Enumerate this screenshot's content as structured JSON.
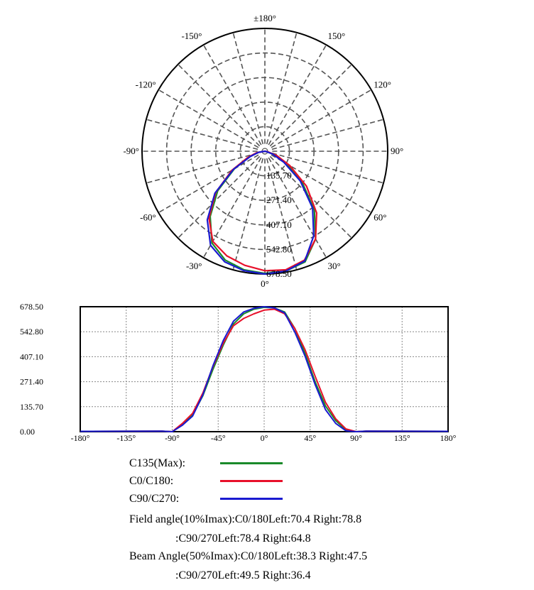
{
  "chart_data": [
    {
      "type": "polar",
      "angle_labels": [
        {
          "deg": 180,
          "text": "±180°"
        },
        {
          "deg": 150,
          "text": "150°"
        },
        {
          "deg": 120,
          "text": "120°"
        },
        {
          "deg": 90,
          "text": "90°"
        },
        {
          "deg": 60,
          "text": "60°"
        },
        {
          "deg": 30,
          "text": "30°"
        },
        {
          "deg": 0,
          "text": "0°"
        },
        {
          "deg": -30,
          "text": "-30°"
        },
        {
          "deg": -60,
          "text": "-60°"
        },
        {
          "deg": -90,
          "text": "-90°"
        },
        {
          "deg": -120,
          "text": "-120°"
        },
        {
          "deg": -150,
          "text": "-150°"
        }
      ],
      "radial_ticks": [
        135.7,
        271.4,
        407.1,
        542.8,
        678.5
      ],
      "radial_tick_labels": [
        "135.70",
        "271.40",
        "407.10",
        "542.80",
        "678.50"
      ],
      "rmax": 678.5
    },
    {
      "type": "line",
      "x_ticks": [
        -180,
        -135,
        -90,
        -45,
        0,
        45,
        90,
        135,
        180
      ],
      "x_tick_labels": [
        "-180°",
        "-135°",
        "-90°",
        "-45°",
        "0°",
        "45°",
        "90°",
        "135°",
        "180°"
      ],
      "y_ticks": [
        0,
        135.7,
        271.4,
        407.1,
        542.8,
        678.5
      ],
      "y_tick_labels": [
        "0.00",
        "135.70",
        "271.40",
        "407.10",
        "542.80",
        "678.50"
      ],
      "xlim": [
        -180,
        180
      ],
      "ylim": [
        0,
        678.5
      ],
      "angles": [
        -90,
        -80,
        -70,
        -60,
        -50,
        -40,
        -30,
        -20,
        -10,
        0,
        10,
        20,
        30,
        40,
        50,
        60,
        70,
        80,
        90
      ],
      "series": [
        {
          "name": "C135(Max):",
          "color": "#1a8a2a",
          "values": [
            0,
            40,
            90,
            195,
            340,
            470,
            585,
            640,
            665,
            675,
            672,
            650,
            560,
            425,
            270,
            140,
            60,
            10,
            0
          ]
        },
        {
          "name": "C0/C180:",
          "color": "#e8102a",
          "values": [
            0,
            45,
            100,
            210,
            355,
            480,
            575,
            615,
            640,
            660,
            665,
            640,
            560,
            445,
            300,
            160,
            70,
            15,
            0
          ]
        },
        {
          "name": "C90/C270:",
          "color": "#1a1ad0",
          "values": [
            0,
            35,
            85,
            200,
            360,
            495,
            600,
            650,
            670,
            678.5,
            672,
            645,
            540,
            410,
            255,
            120,
            45,
            5,
            0
          ]
        }
      ]
    }
  ],
  "legend": {
    "items": [
      {
        "label": "C135(Max):",
        "color": "#1a8a2a"
      },
      {
        "label": "C0/C180:",
        "color": "#e8102a"
      },
      {
        "label": "C90/C270:",
        "color": "#1a1ad0"
      }
    ]
  },
  "info": {
    "field_angle_c0": "Field angle(10%Imax):C0/180Left:70.4 Right:78.8",
    "field_angle_c90": ":C90/270Left:78.4 Right:64.8",
    "beam_angle_c0": "Beam Angle(50%Imax):C0/180Left:38.3 Right:47.5",
    "beam_angle_c90": ":C90/270Left:49.5 Right:36.4"
  }
}
